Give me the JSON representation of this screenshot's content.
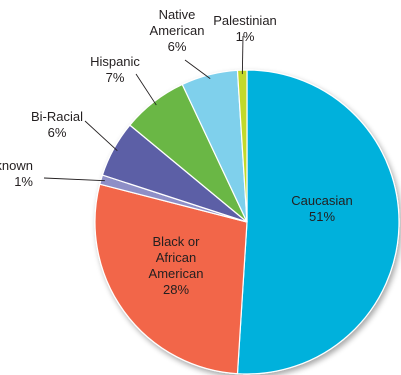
{
  "chart_data": {
    "type": "pie",
    "categories": [
      "Caucasian",
      "Black or African American",
      "Unknown",
      "Bi-Racial",
      "Hispanic",
      "Native American",
      "Palestinian"
    ],
    "values": [
      51,
      28,
      1,
      6,
      7,
      6,
      1
    ],
    "labels": [
      {
        "lines": [
          "Caucasian"
        ],
        "pct": "51%"
      },
      {
        "lines": [
          "Black or",
          "African",
          "American"
        ],
        "pct": "28%"
      },
      {
        "lines": [
          "Unknown"
        ],
        "pct": "1%"
      },
      {
        "lines": [
          "Bi-Racial"
        ],
        "pct": "6%"
      },
      {
        "lines": [
          "Hispanic"
        ],
        "pct": "7%"
      },
      {
        "lines": [
          "Native",
          "American"
        ],
        "pct": "6%"
      },
      {
        "lines": [
          "Palestinian"
        ],
        "pct": "1%"
      }
    ],
    "colors": [
      "#00b1dc",
      "#f26649",
      "#8e8fc7",
      "#5b5ea6",
      "#6ab745",
      "#7fd0ec",
      "#c2d92c"
    ],
    "start": "12 o'clock",
    "direction": "clockwise",
    "legend": "none (category labels beside slices)"
  }
}
